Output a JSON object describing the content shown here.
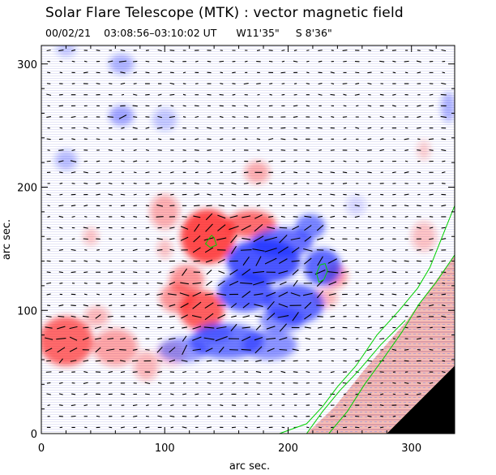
{
  "header": {
    "title": "Solar Flare Telescope (MTK) : vector magnetic field",
    "date": "00/02/21",
    "time_range": "03:08:56–03:10:02 UT",
    "position_w": "W11'35\"",
    "position_s": "S 8'36\""
  },
  "chart_data": {
    "type": "heatmap",
    "title": "Solar Flare Telescope (MTK) : vector magnetic field",
    "xlabel": "arc sec.",
    "ylabel": "arc sec.",
    "xlim": [
      0,
      335
    ],
    "ylim": [
      0,
      315
    ],
    "xticks": [
      0,
      100,
      200,
      300
    ],
    "yticks": [
      0,
      100,
      200,
      300
    ],
    "colors": {
      "positive_polarity": "#ff2020",
      "negative_polarity": "#2030ff",
      "contour": "#00d000",
      "outside_disk": "#000000",
      "background": "#ffffff"
    },
    "positive_regions": [
      {
        "x": 135,
        "y": 160,
        "rx": 22,
        "ry": 22,
        "amp": 0.95
      },
      {
        "x": 170,
        "y": 170,
        "rx": 20,
        "ry": 11,
        "amp": 0.75
      },
      {
        "x": 118,
        "y": 125,
        "rx": 14,
        "ry": 12,
        "amp": 0.55
      },
      {
        "x": 130,
        "y": 100,
        "rx": 18,
        "ry": 16,
        "amp": 0.85
      },
      {
        "x": 110,
        "y": 110,
        "rx": 14,
        "ry": 12,
        "amp": 0.55
      },
      {
        "x": 20,
        "y": 75,
        "rx": 22,
        "ry": 20,
        "amp": 0.8
      },
      {
        "x": 60,
        "y": 70,
        "rx": 18,
        "ry": 15,
        "amp": 0.45
      },
      {
        "x": 85,
        "y": 55,
        "rx": 10,
        "ry": 12,
        "amp": 0.35
      },
      {
        "x": 105,
        "y": 65,
        "rx": 12,
        "ry": 10,
        "amp": 0.25
      },
      {
        "x": 45,
        "y": 95,
        "rx": 10,
        "ry": 8,
        "amp": 0.35
      },
      {
        "x": 175,
        "y": 212,
        "rx": 10,
        "ry": 9,
        "amp": 0.4
      },
      {
        "x": 100,
        "y": 180,
        "rx": 12,
        "ry": 14,
        "amp": 0.4
      },
      {
        "x": 100,
        "y": 150,
        "rx": 6,
        "ry": 8,
        "amp": 0.3
      },
      {
        "x": 238,
        "y": 128,
        "rx": 10,
        "ry": 10,
        "amp": 0.5
      },
      {
        "x": 230,
        "y": 110,
        "rx": 10,
        "ry": 8,
        "amp": 0.35
      },
      {
        "x": 310,
        "y": 160,
        "rx": 10,
        "ry": 12,
        "amp": 0.3
      },
      {
        "x": 310,
        "y": 230,
        "rx": 5,
        "ry": 8,
        "amp": 0.25
      },
      {
        "x": 40,
        "y": 160,
        "rx": 6,
        "ry": 7,
        "amp": 0.3
      }
    ],
    "negative_regions": [
      {
        "x": 180,
        "y": 140,
        "rx": 30,
        "ry": 18,
        "amp": 0.95
      },
      {
        "x": 195,
        "y": 155,
        "rx": 25,
        "ry": 12,
        "amp": 0.8
      },
      {
        "x": 218,
        "y": 168,
        "rx": 12,
        "ry": 10,
        "amp": 0.7
      },
      {
        "x": 228,
        "y": 135,
        "rx": 15,
        "ry": 15,
        "amp": 0.85
      },
      {
        "x": 165,
        "y": 115,
        "rx": 22,
        "ry": 16,
        "amp": 0.9
      },
      {
        "x": 205,
        "y": 105,
        "rx": 24,
        "ry": 16,
        "amp": 0.85
      },
      {
        "x": 150,
        "y": 75,
        "rx": 30,
        "ry": 14,
        "amp": 0.75
      },
      {
        "x": 185,
        "y": 72,
        "rx": 22,
        "ry": 12,
        "amp": 0.6
      },
      {
        "x": 115,
        "y": 68,
        "rx": 20,
        "ry": 10,
        "amp": 0.55
      },
      {
        "x": 195,
        "y": 92,
        "rx": 18,
        "ry": 10,
        "amp": 0.6
      },
      {
        "x": 140,
        "y": 82,
        "rx": 14,
        "ry": 8,
        "amp": 0.5
      },
      {
        "x": 65,
        "y": 300,
        "rx": 10,
        "ry": 8,
        "amp": 0.4
      },
      {
        "x": 20,
        "y": 312,
        "rx": 8,
        "ry": 6,
        "amp": 0.3
      },
      {
        "x": 65,
        "y": 258,
        "rx": 10,
        "ry": 8,
        "amp": 0.5
      },
      {
        "x": 20,
        "y": 222,
        "rx": 9,
        "ry": 8,
        "amp": 0.35
      },
      {
        "x": 100,
        "y": 255,
        "rx": 10,
        "ry": 9,
        "amp": 0.3
      },
      {
        "x": 330,
        "y": 265,
        "rx": 6,
        "ry": 12,
        "amp": 0.4
      },
      {
        "x": 255,
        "y": 185,
        "rx": 8,
        "ry": 8,
        "amp": 0.2
      }
    ],
    "contours": [
      [
        [
          193,
          0
        ],
        [
          215,
          8
        ],
        [
          228,
          22
        ],
        [
          240,
          38
        ],
        [
          255,
          55
        ],
        [
          272,
          80
        ],
        [
          290,
          100
        ],
        [
          305,
          118
        ],
        [
          315,
          135
        ],
        [
          325,
          160
        ],
        [
          335,
          185
        ]
      ],
      [
        [
          233,
          0
        ],
        [
          248,
          18
        ],
        [
          262,
          40
        ],
        [
          278,
          62
        ],
        [
          292,
          82
        ],
        [
          306,
          105
        ],
        [
          320,
          123
        ],
        [
          335,
          145
        ]
      ],
      [
        [
          215,
          0
        ],
        [
          228,
          18
        ],
        [
          242,
          35
        ],
        [
          258,
          52
        ],
        [
          275,
          72
        ],
        [
          295,
          92
        ]
      ],
      [
        [
          138,
          161
        ],
        [
          135,
          157
        ],
        [
          133,
          154
        ],
        [
          137,
          151
        ],
        [
          142,
          153
        ],
        [
          140,
          159
        ],
        [
          138,
          161
        ]
      ],
      [
        [
          226,
          137
        ],
        [
          230,
          138
        ],
        [
          232,
          132
        ],
        [
          229,
          125
        ],
        [
          225,
          123
        ],
        [
          223,
          130
        ],
        [
          226,
          137
        ]
      ]
    ],
    "off_disk": [
      [
        280,
        0
      ],
      [
        335,
        0
      ],
      [
        335,
        55
      ],
      [
        300,
        20
      ],
      [
        288,
        8
      ]
    ],
    "limb_band": [
      [
        215,
        0
      ],
      [
        280,
        0
      ],
      [
        335,
        55
      ],
      [
        335,
        145
      ],
      [
        295,
        90
      ],
      [
        262,
        52
      ],
      [
        238,
        22
      ]
    ]
  }
}
